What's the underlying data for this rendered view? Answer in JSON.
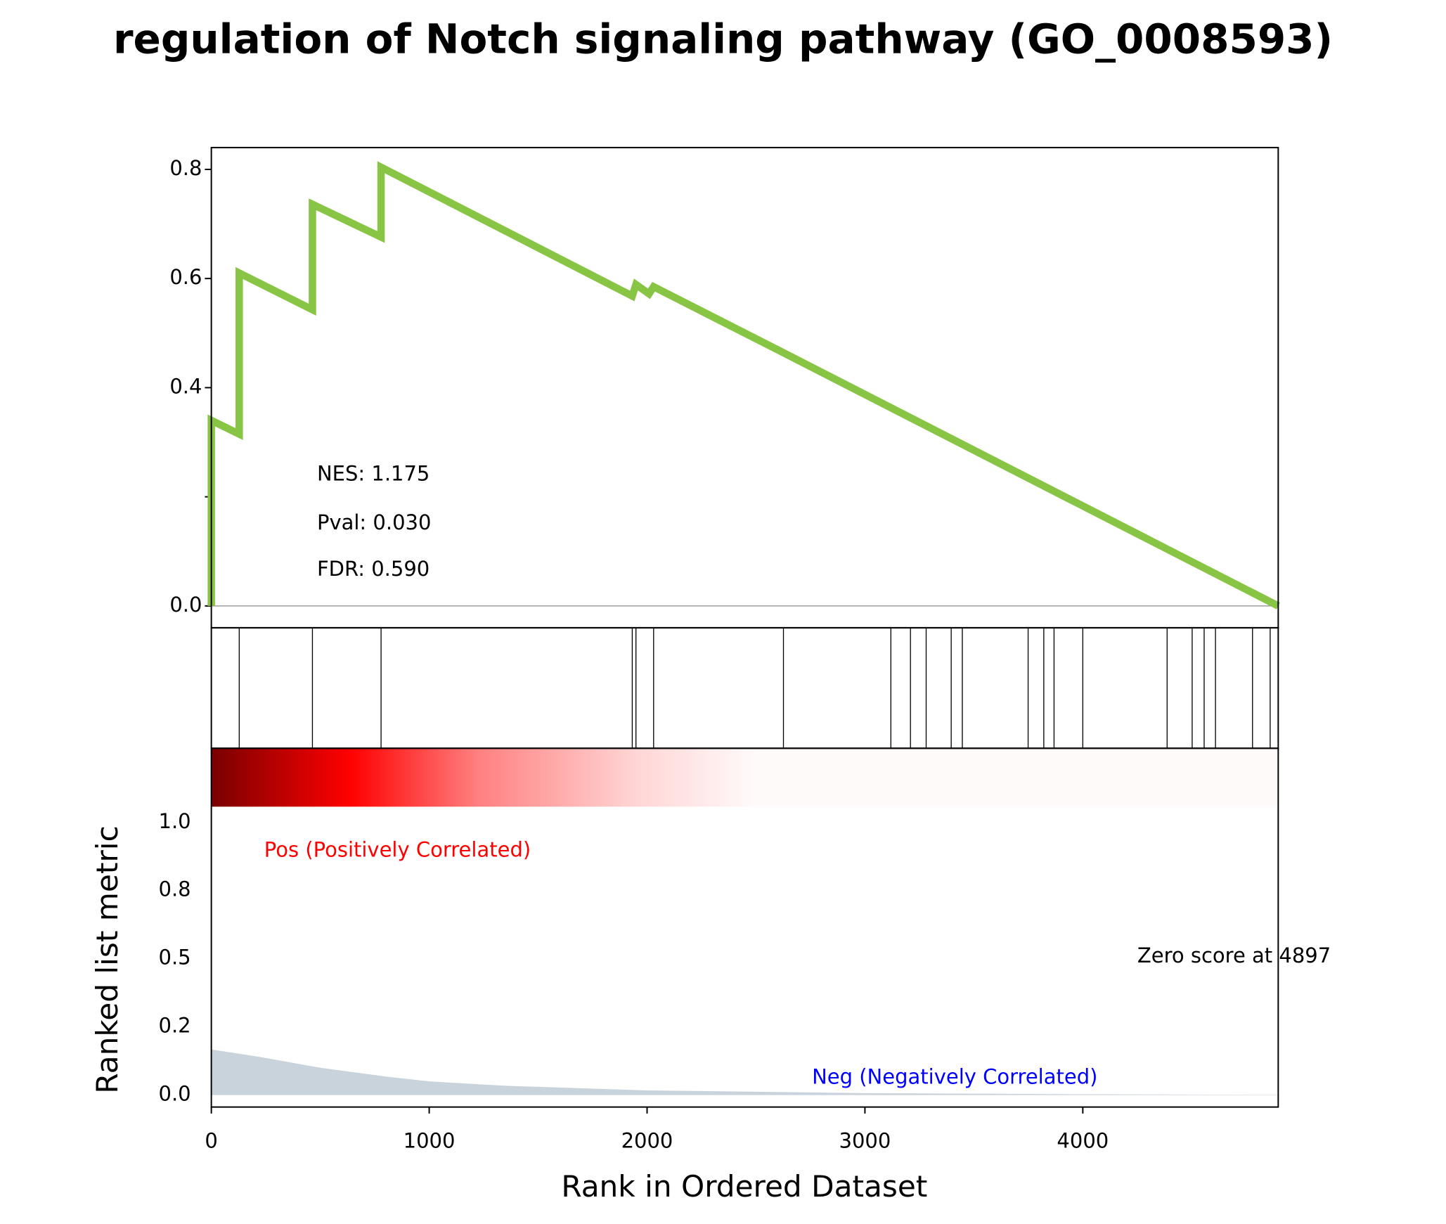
{
  "chart_data": {
    "type": "gsea",
    "title": "regulation of Notch signaling pathway (GO_0008593)",
    "xlabel": "Rank in Ordered Dataset",
    "ylabel": "Ranked list metric",
    "stats": [
      "NES: 1.175",
      "Pval: 0.030",
      "FDR: 0.590"
    ],
    "pos_label": "Pos (Positively Correlated)",
    "neg_label": "Neg (Negatively Correlated)",
    "zero_score_label": "Zero score at 4897",
    "xlim": [
      0,
      4897
    ],
    "xticks": [
      0,
      1000,
      2000,
      3000,
      4000
    ],
    "ylim": [
      -0.04,
      0.84
    ],
    "yticks": [
      {
        "value": 0,
        "label": "0.0"
      },
      0.4,
      0.6,
      0.8
    ],
    "yticks_unlabeled": [
      0.2
    ],
    "es_color": "#88c544",
    "es_x": [
      0,
      0,
      128,
      128,
      464,
      464,
      779,
      779,
      1932,
      1949,
      2009,
      2030,
      2626,
      4897
    ],
    "es_values": [
      0,
      0.34,
      0.315,
      0.61,
      0.543,
      0.736,
      0.676,
      0.804,
      0.568,
      0.589,
      0.572,
      0.585,
      0.464,
      0
    ],
    "hits": [
      0,
      128,
      464,
      779,
      1932,
      1949,
      2030,
      2626,
      3119,
      3209,
      3281,
      3396,
      3447,
      3749,
      3821,
      3868,
      4000,
      4387,
      4502,
      4557,
      4609,
      4779,
      4860
    ],
    "metric_color": "#c9d3dc",
    "metric_ylim": [
      -0.044,
      1.272
    ],
    "metric_yticks": [
      {
        "value": 0,
        "label": "0.0"
      },
      {
        "value": 0.25,
        "label": "0.2"
      },
      {
        "value": 0.5,
        "label": "0.5"
      },
      {
        "value": 0.75,
        "label": "0.8"
      },
      {
        "value": 1,
        "label": "1.0"
      }
    ],
    "metric_x": [
      0,
      221,
      500,
      800,
      1000,
      1350,
      2000,
      3000,
      4000,
      4897
    ],
    "metric_values": [
      0.167,
      0.14,
      0.1,
      0.068,
      0.05,
      0.034,
      0.017,
      0.007,
      0.003,
      0.001
    ]
  }
}
